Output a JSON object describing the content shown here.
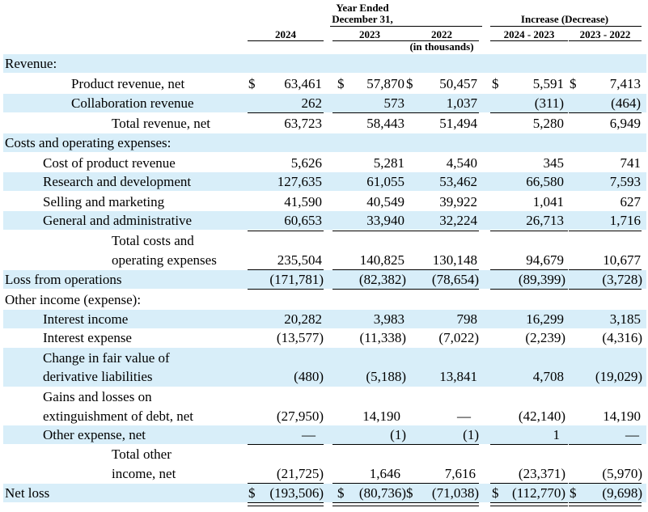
{
  "header": {
    "year_ended": "Year Ended",
    "december": "December 31,",
    "col_2024": "2024",
    "col_2023": "2023",
    "col_2022": "2022",
    "in_thousands": "(in thousands)",
    "increase_decrease": "Increase (Decrease)",
    "col_24_23": "2024 - 2023",
    "col_23_22": "2023 - 2022"
  },
  "rows": [
    {
      "label": "Revenue:"
    },
    {
      "label": "Product revenue, net",
      "v2024": "63,461",
      "v2023": "57,870",
      "v2022": "50,457",
      "d1": "5,591",
      "d2": "7,413"
    },
    {
      "label": "Collaboration revenue",
      "v2024": "262",
      "v2023": "573",
      "v2022": "1,037",
      "d1": "(311)",
      "d2": "(464)"
    },
    {
      "label": "Total revenue, net",
      "v2024": "63,723",
      "v2023": "58,443",
      "v2022": "51,494",
      "d1": "5,280",
      "d2": "6,949"
    },
    {
      "label": "Costs and operating expenses:"
    },
    {
      "label": "Cost of product revenue",
      "v2024": "5,626",
      "v2023": "5,281",
      "v2022": "4,540",
      "d1": "345",
      "d2": "741"
    },
    {
      "label": "Research and development",
      "v2024": "127,635",
      "v2023": "61,055",
      "v2022": "53,462",
      "d1": "66,580",
      "d2": "7,593"
    },
    {
      "label": "Selling and marketing",
      "v2024": "41,590",
      "v2023": "40,549",
      "v2022": "39,922",
      "d1": "1,041",
      "d2": "627"
    },
    {
      "label": "General and administrative",
      "v2024": "60,653",
      "v2023": "33,940",
      "v2022": "32,224",
      "d1": "26,713",
      "d2": "1,716"
    },
    {
      "label": "Total costs and",
      "label2": "operating expenses",
      "v2024": "235,504",
      "v2023": "140,825",
      "v2022": "130,148",
      "d1": "94,679",
      "d2": "10,677"
    },
    {
      "label": "Loss from operations",
      "v2024": "(171,781)",
      "v2023": "(82,382)",
      "v2022": "(78,654)",
      "d1": "(89,399)",
      "d2": "(3,728)"
    },
    {
      "label": "Other income (expense):"
    },
    {
      "label": "Interest income",
      "v2024": "20,282",
      "v2023": "3,983",
      "v2022": "798",
      "d1": "16,299",
      "d2": "3,185"
    },
    {
      "label": "Interest expense",
      "v2024": "(13,577)",
      "v2023": "(11,338)",
      "v2022": "(7,022)",
      "d1": "(2,239)",
      "d2": "(4,316)"
    },
    {
      "label": "Change in fair value of",
      "label2": "derivative liabilities",
      "v2024": "(480)",
      "v2023": "(5,188)",
      "v2022": "13,841",
      "d1": "4,708",
      "d2": "(19,029)"
    },
    {
      "label": "Gains and losses on",
      "label2": "extinguishment of debt, net",
      "v2024": "(27,950)",
      "v2023": "14,190",
      "v2022": "—",
      "d1": "(42,140)",
      "d2": "14,190"
    },
    {
      "label": "Other expense, net",
      "v2024": "—",
      "v2023": "(1)",
      "v2022": "(1)",
      "d1": "1",
      "d2": "—"
    },
    {
      "label": "Total other",
      "label2": "income, net",
      "v2024": "(21,725)",
      "v2023": "1,646",
      "v2022": "7,616",
      "d1": "(23,371)",
      "d2": "(5,970)"
    },
    {
      "label": "Net loss",
      "v2024": "(193,506)",
      "v2023": "(80,736)",
      "v2022": "(71,038)",
      "d1": "(112,770)",
      "d2": "(9,698)"
    }
  ],
  "currency_symbol": "$"
}
